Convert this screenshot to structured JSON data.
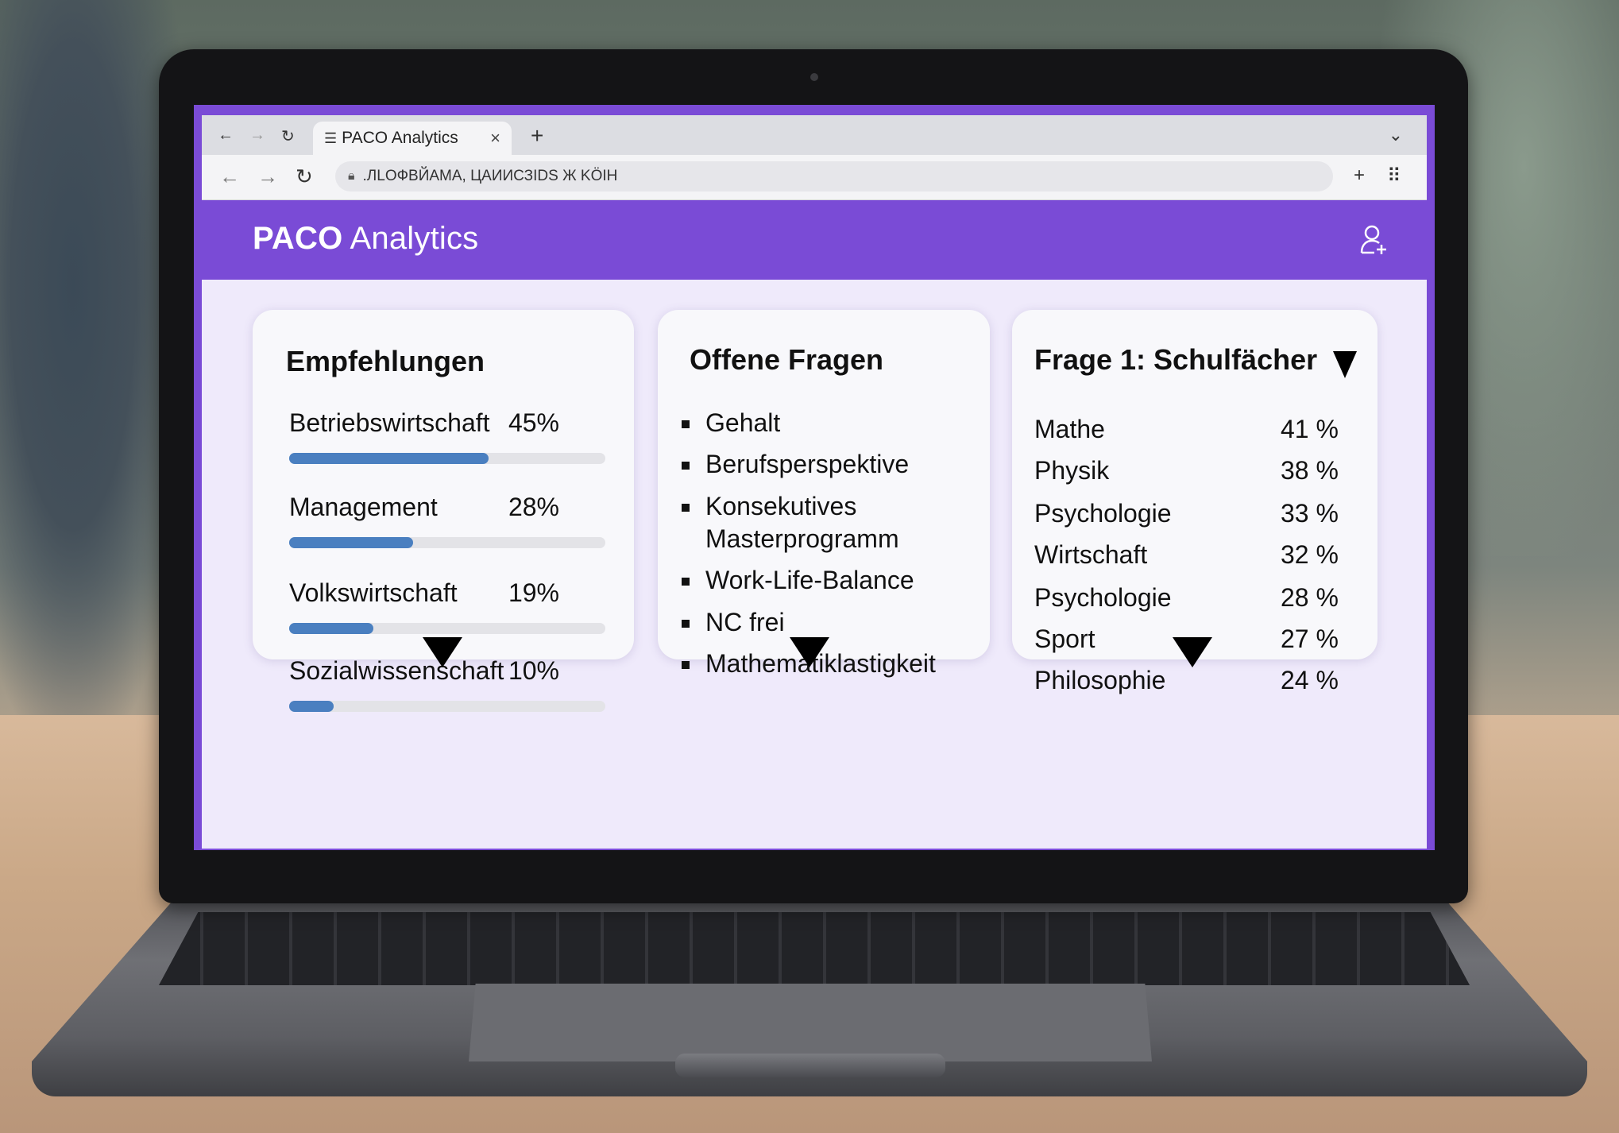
{
  "browser": {
    "tab_title": "PACO Analytics",
    "tab_close": "×",
    "new_tab": "+",
    "tab_menu": "⌄",
    "url": ".ЛLOФВЙАМА, ЦАИИСЗIDS Ж KÖIH",
    "toolbar_right_plus": "+",
    "toolbar_right_grid": "⠿"
  },
  "app": {
    "brand_bold": "PACO",
    "brand_rest": " Analytics"
  },
  "recommendations": {
    "title": "Empfehlungen",
    "items": [
      {
        "label": "Betriebswirtschaft",
        "pct_label": "45%",
        "value": 0.45
      },
      {
        "label": "Management",
        "pct_label": "28%",
        "value": 0.28
      },
      {
        "label": "Volkswirtschaft",
        "pct_label": "19%",
        "value": 0.19
      },
      {
        "label": "Sozialwissenschaft",
        "pct_label": "10%",
        "value": 0.1
      }
    ]
  },
  "open_questions": {
    "title": "Offene Fragen",
    "items": [
      "Gehalt",
      "Berufsperspektive",
      "Konsekutives Masterprogramm",
      "Work-Life-Balance",
      "NC frei",
      "Mathematiklastigkeit"
    ]
  },
  "subjects": {
    "title": "Frage 1: Schulfächer",
    "items": [
      {
        "label": "Mathe",
        "pct": "41 %"
      },
      {
        "label": "Physik",
        "pct": "38 %"
      },
      {
        "label": "Psychologie",
        "pct": "33 %"
      },
      {
        "label": "Wirtschaft",
        "pct": "32 %"
      },
      {
        "label": "Psychologie",
        "pct": "28 %"
      },
      {
        "label": "Sport",
        "pct": "27 %"
      },
      {
        "label": "Philosophie",
        "pct": "24 %"
      }
    ]
  }
}
